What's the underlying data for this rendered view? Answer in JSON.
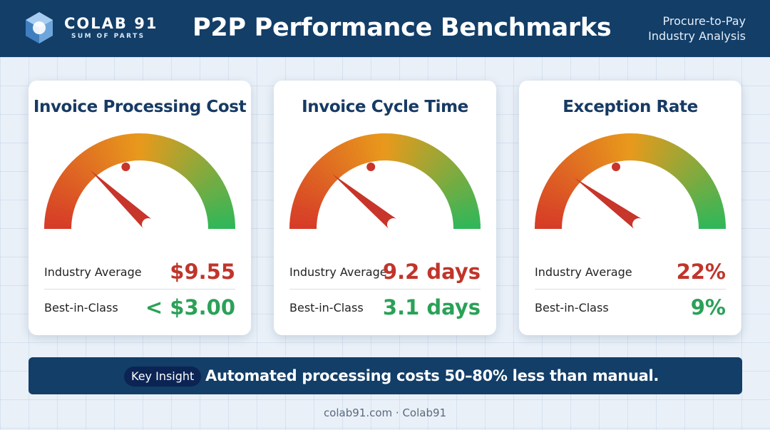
{
  "header": {
    "brand_name": "COLAB 91",
    "brand_tagline": "SUM OF PARTS",
    "title": "P2P Performance Benchmarks",
    "subtitle_line1": "Procure-to-Pay",
    "subtitle_line2": "Industry Analysis",
    "logo_icon": "hexagon-logo-icon"
  },
  "colors": {
    "header_bg": "#123e68",
    "average_value": "#c0352b",
    "best_value": "#2aa157",
    "gauge_red": "#d63a28",
    "gauge_orange": "#e89a1c",
    "gauge_green": "#2eb75a",
    "needle": "#c7352b"
  },
  "cards": [
    {
      "title": "Invoice Processing Cost",
      "gauge_level": 0.24,
      "avg_label": "Industry Average",
      "avg_value": "$9.55",
      "best_label": "Best-in-Class",
      "best_value": "< $3.00"
    },
    {
      "title": "Invoice Cycle Time",
      "gauge_level": 0.22,
      "avg_label": "Industry Average",
      "avg_value": "9.2 days",
      "best_label": "Best-in-Class",
      "best_value": "3.1 days"
    },
    {
      "title": "Exception Rate",
      "gauge_level": 0.2,
      "avg_label": "Industry Average",
      "avg_value": "22%",
      "best_label": "Best-in-Class",
      "best_value": "9%"
    }
  ],
  "insight": {
    "badge": "Key Insight",
    "text": "Automated processing costs 50–80% less than manual."
  },
  "footer": {
    "text": "colab91.com · Colab91"
  }
}
